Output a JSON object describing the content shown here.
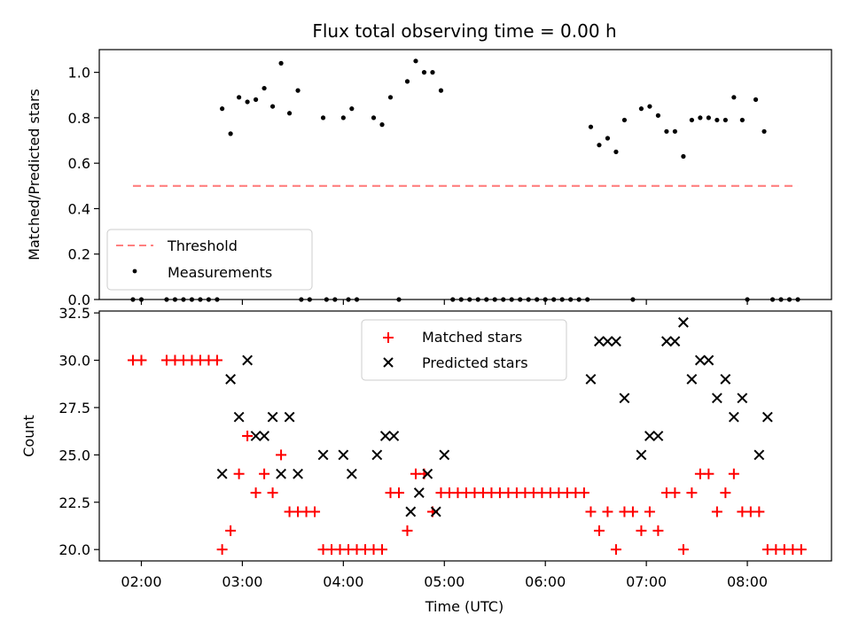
{
  "figure_title": "Flux total observing time = 0.00 h",
  "colors": {
    "threshold": "#ff7f7f",
    "measurement": "#000000",
    "matched": "#ff0000",
    "predicted": "#000000",
    "axes": "#000000",
    "legend_border": "#cccccc"
  },
  "chart_data": [
    {
      "type": "scatter",
      "title": "Flux total observing time = 0.00 h",
      "ylabel": "Matched/Predicted stars",
      "xlabel": "",
      "xlim": [
        "01:35",
        "08:50"
      ],
      "ylim": [
        0,
        1.1
      ],
      "yticks": [
        0.0,
        0.2,
        0.4,
        0.6,
        0.8,
        1.0
      ],
      "ytick_labels": [
        "0.0",
        "0.2",
        "0.4",
        "0.6",
        "0.8",
        "1.0"
      ],
      "grid": false,
      "legend_position": "lower left",
      "legend": [
        "Threshold",
        "Measurements"
      ],
      "series": [
        {
          "name": "Threshold",
          "style": "dashed-line",
          "x": [
            "01:55",
            "08:30"
          ],
          "y": [
            0.5,
            0.5
          ]
        },
        {
          "name": "Measurements",
          "style": "dot",
          "points": [
            [
              "01:55",
              0.0
            ],
            [
              "02:00",
              0.0
            ],
            [
              "02:15",
              0.0
            ],
            [
              "02:20",
              0.0
            ],
            [
              "02:25",
              0.0
            ],
            [
              "02:30",
              0.0
            ],
            [
              "02:35",
              0.0
            ],
            [
              "02:40",
              0.0
            ],
            [
              "02:45",
              0.0
            ],
            [
              "02:48",
              0.84
            ],
            [
              "02:53",
              0.73
            ],
            [
              "02:58",
              0.89
            ],
            [
              "03:03",
              0.87
            ],
            [
              "03:08",
              0.88
            ],
            [
              "03:13",
              0.93
            ],
            [
              "03:18",
              0.85
            ],
            [
              "03:23",
              1.04
            ],
            [
              "03:28",
              0.82
            ],
            [
              "03:33",
              0.92
            ],
            [
              "03:35",
              0.0
            ],
            [
              "03:40",
              0.0
            ],
            [
              "03:48",
              0.8
            ],
            [
              "03:50",
              0.0
            ],
            [
              "03:55",
              0.0
            ],
            [
              "04:00",
              0.8
            ],
            [
              "04:03",
              0.0
            ],
            [
              "04:08",
              0.0
            ],
            [
              "04:05",
              0.84
            ],
            [
              "04:18",
              0.8
            ],
            [
              "04:23",
              0.77
            ],
            [
              "04:28",
              0.89
            ],
            [
              "04:33",
              0.0
            ],
            [
              "04:38",
              0.96
            ],
            [
              "04:43",
              1.05
            ],
            [
              "04:48",
              1.0
            ],
            [
              "04:53",
              1.0
            ],
            [
              "04:58",
              0.92
            ],
            [
              "05:05",
              0.0
            ],
            [
              "05:10",
              0.0
            ],
            [
              "05:15",
              0.0
            ],
            [
              "05:20",
              0.0
            ],
            [
              "05:25",
              0.0
            ],
            [
              "05:30",
              0.0
            ],
            [
              "05:35",
              0.0
            ],
            [
              "05:40",
              0.0
            ],
            [
              "05:45",
              0.0
            ],
            [
              "05:50",
              0.0
            ],
            [
              "05:55",
              0.0
            ],
            [
              "06:00",
              0.0
            ],
            [
              "06:05",
              0.0
            ],
            [
              "06:10",
              0.0
            ],
            [
              "06:15",
              0.0
            ],
            [
              "06:20",
              0.0
            ],
            [
              "06:25",
              0.0
            ],
            [
              "06:27",
              0.76
            ],
            [
              "06:32",
              0.68
            ],
            [
              "06:37",
              0.71
            ],
            [
              "06:42",
              0.65
            ],
            [
              "06:47",
              0.79
            ],
            [
              "06:52",
              0.0
            ],
            [
              "06:57",
              0.84
            ],
            [
              "07:02",
              0.85
            ],
            [
              "07:07",
              0.81
            ],
            [
              "07:12",
              0.74
            ],
            [
              "07:17",
              0.74
            ],
            [
              "07:22",
              0.63
            ],
            [
              "07:27",
              0.79
            ],
            [
              "07:32",
              0.8
            ],
            [
              "07:37",
              0.8
            ],
            [
              "07:42",
              0.79
            ],
            [
              "07:47",
              0.79
            ],
            [
              "07:52",
              0.89
            ],
            [
              "07:57",
              0.79
            ],
            [
              "08:00",
              0.0
            ],
            [
              "08:05",
              0.88
            ],
            [
              "08:10",
              0.74
            ],
            [
              "08:15",
              0.0
            ],
            [
              "08:20",
              0.0
            ],
            [
              "08:25",
              0.0
            ],
            [
              "08:30",
              0.0
            ]
          ]
        }
      ]
    },
    {
      "type": "scatter",
      "title": "",
      "ylabel": "Count",
      "xlabel": "Time (UTC)",
      "xlim": [
        "01:35",
        "08:50"
      ],
      "ylim": [
        19.4,
        32.6
      ],
      "yticks": [
        20.0,
        22.5,
        25.0,
        27.5,
        30.0,
        32.5
      ],
      "ytick_labels": [
        "20.0",
        "22.5",
        "25.0",
        "27.5",
        "30.0",
        "32.5"
      ],
      "xticks": [
        "02:00",
        "03:00",
        "04:00",
        "05:00",
        "06:00",
        "07:00",
        "08:00"
      ],
      "grid": false,
      "legend_position": "upper center",
      "legend": [
        "Matched stars",
        "Predicted stars"
      ],
      "series": [
        {
          "name": "Matched stars",
          "marker": "plus",
          "points": [
            [
              "01:55",
              30
            ],
            [
              "02:00",
              30
            ],
            [
              "02:15",
              30
            ],
            [
              "02:20",
              30
            ],
            [
              "02:25",
              30
            ],
            [
              "02:30",
              30
            ],
            [
              "02:35",
              30
            ],
            [
              "02:40",
              30
            ],
            [
              "02:45",
              30
            ],
            [
              "02:48",
              20
            ],
            [
              "02:53",
              21
            ],
            [
              "02:58",
              24
            ],
            [
              "03:03",
              26
            ],
            [
              "03:08",
              23
            ],
            [
              "03:13",
              24
            ],
            [
              "03:18",
              23
            ],
            [
              "03:23",
              25
            ],
            [
              "03:28",
              22
            ],
            [
              "03:33",
              22
            ],
            [
              "03:38",
              22
            ],
            [
              "03:43",
              22
            ],
            [
              "03:48",
              20
            ],
            [
              "03:53",
              20
            ],
            [
              "03:58",
              20
            ],
            [
              "04:03",
              20
            ],
            [
              "04:08",
              20
            ],
            [
              "04:13",
              20
            ],
            [
              "04:18",
              20
            ],
            [
              "04:23",
              20
            ],
            [
              "04:28",
              23
            ],
            [
              "04:33",
              23
            ],
            [
              "04:38",
              21
            ],
            [
              "04:43",
              24
            ],
            [
              "04:48",
              24
            ],
            [
              "04:53",
              22
            ],
            [
              "04:58",
              23
            ],
            [
              "05:03",
              23
            ],
            [
              "05:08",
              23
            ],
            [
              "05:13",
              23
            ],
            [
              "05:18",
              23
            ],
            [
              "05:23",
              23
            ],
            [
              "05:28",
              23
            ],
            [
              "05:33",
              23
            ],
            [
              "05:38",
              23
            ],
            [
              "05:43",
              23
            ],
            [
              "05:48",
              23
            ],
            [
              "05:53",
              23
            ],
            [
              "05:58",
              23
            ],
            [
              "06:03",
              23
            ],
            [
              "06:08",
              23
            ],
            [
              "06:13",
              23
            ],
            [
              "06:18",
              23
            ],
            [
              "06:23",
              23
            ],
            [
              "06:27",
              22
            ],
            [
              "06:32",
              21
            ],
            [
              "06:37",
              22
            ],
            [
              "06:42",
              20
            ],
            [
              "06:47",
              22
            ],
            [
              "06:52",
              22
            ],
            [
              "06:57",
              21
            ],
            [
              "07:02",
              22
            ],
            [
              "07:07",
              21
            ],
            [
              "07:12",
              23
            ],
            [
              "07:17",
              23
            ],
            [
              "07:22",
              20
            ],
            [
              "07:27",
              23
            ],
            [
              "07:32",
              24
            ],
            [
              "07:37",
              24
            ],
            [
              "07:42",
              22
            ],
            [
              "07:47",
              23
            ],
            [
              "07:52",
              24
            ],
            [
              "07:57",
              22
            ],
            [
              "08:02",
              22
            ],
            [
              "08:07",
              22
            ],
            [
              "08:12",
              20
            ],
            [
              "08:17",
              20
            ],
            [
              "08:22",
              20
            ],
            [
              "08:27",
              20
            ],
            [
              "08:32",
              20
            ]
          ]
        },
        {
          "name": "Predicted stars",
          "marker": "x",
          "points": [
            [
              "02:48",
              24
            ],
            [
              "02:53",
              29
            ],
            [
              "02:58",
              27
            ],
            [
              "03:03",
              30
            ],
            [
              "03:08",
              26
            ],
            [
              "03:13",
              26
            ],
            [
              "03:18",
              27
            ],
            [
              "03:23",
              24
            ],
            [
              "03:28",
              27
            ],
            [
              "03:33",
              24
            ],
            [
              "03:48",
              25
            ],
            [
              "04:00",
              25
            ],
            [
              "04:05",
              24
            ],
            [
              "04:20",
              25
            ],
            [
              "04:25",
              26
            ],
            [
              "04:30",
              26
            ],
            [
              "04:40",
              22
            ],
            [
              "04:45",
              23
            ],
            [
              "04:50",
              24
            ],
            [
              "04:55",
              22
            ],
            [
              "05:00",
              25
            ],
            [
              "06:27",
              29
            ],
            [
              "06:32",
              31
            ],
            [
              "06:37",
              31
            ],
            [
              "06:42",
              31
            ],
            [
              "06:47",
              28
            ],
            [
              "06:57",
              25
            ],
            [
              "07:02",
              26
            ],
            [
              "07:07",
              26
            ],
            [
              "07:12",
              31
            ],
            [
              "07:17",
              31
            ],
            [
              "07:22",
              32
            ],
            [
              "07:27",
              29
            ],
            [
              "07:32",
              30
            ],
            [
              "07:37",
              30
            ],
            [
              "07:42",
              28
            ],
            [
              "07:47",
              29
            ],
            [
              "07:52",
              27
            ],
            [
              "07:57",
              28
            ],
            [
              "08:07",
              25
            ],
            [
              "08:12",
              27
            ]
          ]
        }
      ]
    }
  ]
}
